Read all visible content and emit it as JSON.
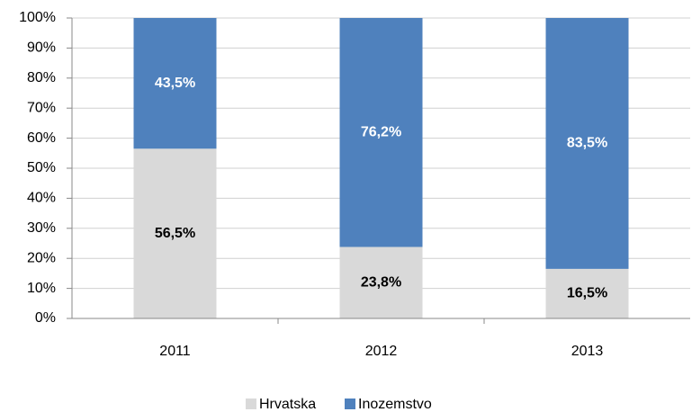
{
  "chart_data": {
    "type": "stacked_bar",
    "categories": [
      "2011",
      "2012",
      "2013"
    ],
    "series": [
      {
        "name": "Hrvatska",
        "color": "#d9d9d9",
        "label_color": "#000000",
        "values": [
          56.5,
          23.8,
          16.5
        ],
        "value_labels": [
          "56,5%",
          "23,8%",
          "16,5%"
        ]
      },
      {
        "name": "Inozemstvo",
        "color": "#4f81bd",
        "label_color": "#ffffff",
        "values": [
          43.5,
          76.2,
          83.5
        ],
        "value_labels": [
          "43,5%",
          "76,2%",
          "83,5%"
        ]
      }
    ],
    "ylim": [
      0,
      100
    ],
    "yticks": [
      {
        "value": 0,
        "label": "0%"
      },
      {
        "value": 10,
        "label": "10%"
      },
      {
        "value": 20,
        "label": "20%"
      },
      {
        "value": 30,
        "label": "30%"
      },
      {
        "value": 40,
        "label": "40%"
      },
      {
        "value": 50,
        "label": "50%"
      },
      {
        "value": 60,
        "label": "60%"
      },
      {
        "value": 70,
        "label": "70%"
      },
      {
        "value": 80,
        "label": "80%"
      },
      {
        "value": 90,
        "label": "90%"
      },
      {
        "value": 100,
        "label": "100%"
      }
    ],
    "grid": true,
    "legend": "bottom"
  }
}
